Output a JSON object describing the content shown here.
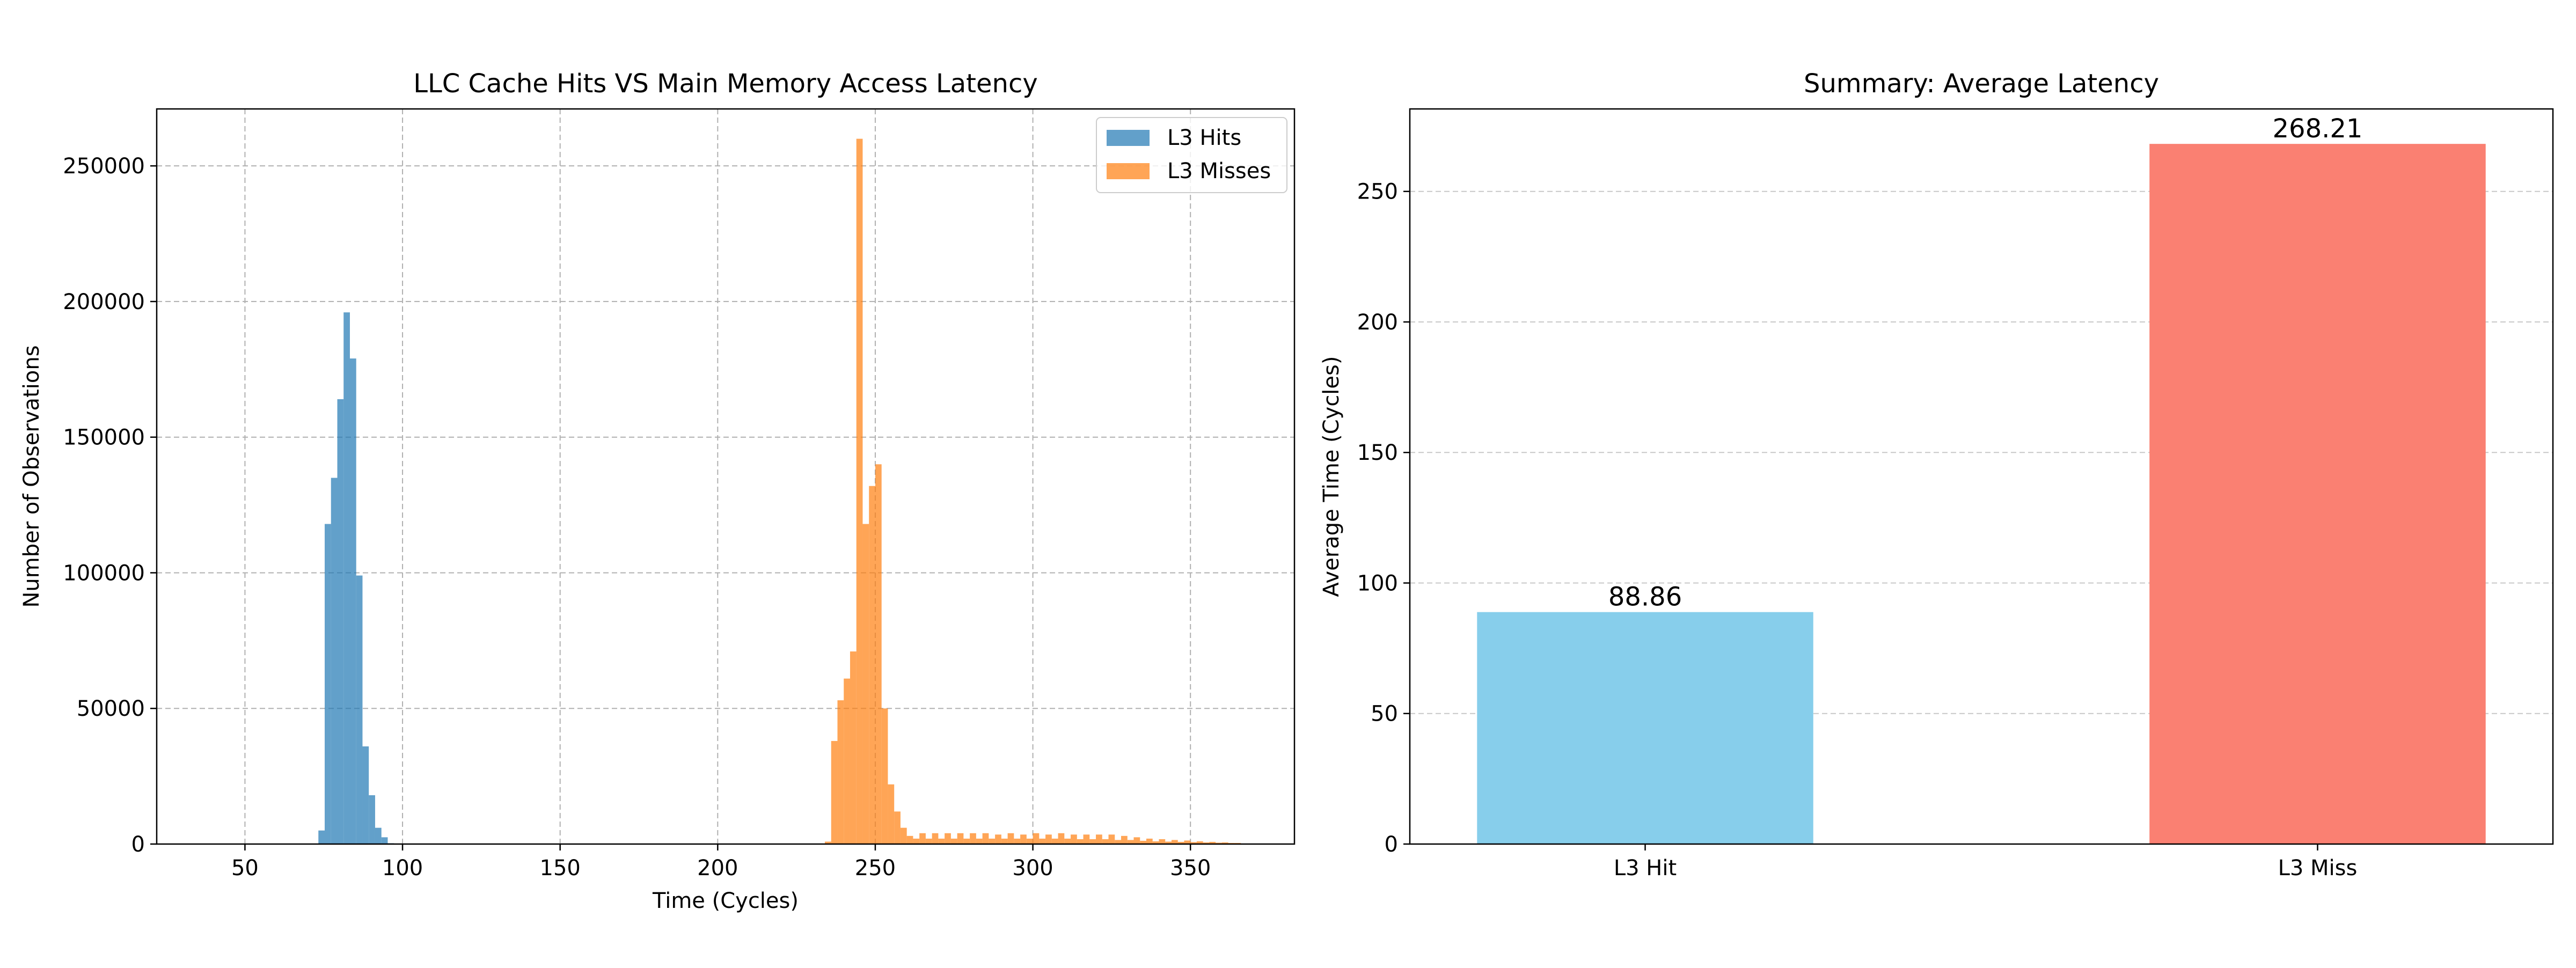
{
  "chart_data": [
    {
      "type": "histogram",
      "title": "LLC Cache Hits VS Main Memory Access Latency",
      "xlabel": "Time (Cycles)",
      "ylabel": "Number of Observations",
      "xlim": [
        22,
        383
      ],
      "ylim": [
        0,
        271000
      ],
      "x_ticks": [
        "50",
        "100",
        "150",
        "200",
        "250",
        "300",
        "350"
      ],
      "y_ticks": [
        "0",
        "50000",
        "100000",
        "150000",
        "200000",
        "250000"
      ],
      "grid": true,
      "legend_position": "top-right",
      "series": [
        {
          "name": "L3 Hits",
          "color": "#1f77b4",
          "opacity": 0.7,
          "bin_width": 2.0,
          "bins": [
            [
              73.3,
              5000
            ],
            [
              75.3,
              118000
            ],
            [
              77.3,
              135000
            ],
            [
              79.3,
              164000
            ],
            [
              81.3,
              196000
            ],
            [
              83.3,
              179000
            ],
            [
              85.3,
              99000
            ],
            [
              87.3,
              36000
            ],
            [
              89.3,
              18000
            ],
            [
              91.3,
              6000
            ],
            [
              93.3,
              2500
            ],
            [
              95.3,
              300
            ]
          ]
        },
        {
          "name": "L3 Misses",
          "color": "#ff7f0e",
          "opacity": 0.7,
          "bin_width": 2.0,
          "bins": [
            [
              234.0,
              900
            ],
            [
              236.0,
              38000
            ],
            [
              238.0,
              53000
            ],
            [
              240.0,
              61000
            ],
            [
              242.0,
              71000
            ],
            [
              244.0,
              260000
            ],
            [
              246.0,
              118000
            ],
            [
              248.0,
              132000
            ],
            [
              250.0,
              140000
            ],
            [
              252.0,
              50000
            ],
            [
              254.0,
              22000
            ],
            [
              256.0,
              12000
            ],
            [
              258.0,
              6000
            ],
            [
              260.0,
              3000
            ],
            [
              262.0,
              2000
            ],
            [
              264.0,
              4000
            ],
            [
              266.0,
              2000
            ],
            [
              268.0,
              4000
            ],
            [
              270.0,
              2000
            ],
            [
              272.0,
              4000
            ],
            [
              274.0,
              2000
            ],
            [
              276.0,
              4000
            ],
            [
              278.0,
              2000
            ],
            [
              280.0,
              4000
            ],
            [
              282.0,
              2000
            ],
            [
              284.0,
              4000
            ],
            [
              286.0,
              2000
            ],
            [
              288.0,
              3500
            ],
            [
              290.0,
              2000
            ],
            [
              292.0,
              4000
            ],
            [
              294.0,
              2000
            ],
            [
              296.0,
              3500
            ],
            [
              298.0,
              2000
            ],
            [
              300.0,
              4000
            ],
            [
              302.0,
              2000
            ],
            [
              304.0,
              3500
            ],
            [
              306.0,
              2000
            ],
            [
              308.0,
              4000
            ],
            [
              310.0,
              2000
            ],
            [
              312.0,
              3500
            ],
            [
              314.0,
              1800
            ],
            [
              316.0,
              3500
            ],
            [
              318.0,
              1800
            ],
            [
              320.0,
              3500
            ],
            [
              322.0,
              1800
            ],
            [
              324.0,
              3500
            ],
            [
              326.0,
              1500
            ],
            [
              328.0,
              3000
            ],
            [
              330.0,
              1500
            ],
            [
              332.0,
              2500
            ],
            [
              334.0,
              1200
            ],
            [
              336.0,
              2000
            ],
            [
              338.0,
              1000
            ],
            [
              340.0,
              1800
            ],
            [
              342.0,
              900
            ],
            [
              344.0,
              1500
            ],
            [
              346.0,
              800
            ],
            [
              348.0,
              1300
            ],
            [
              350.0,
              700
            ],
            [
              352.0,
              1000
            ],
            [
              354.0,
              600
            ],
            [
              356.0,
              800
            ],
            [
              358.0,
              500
            ],
            [
              360.0,
              600
            ],
            [
              362.0,
              400
            ],
            [
              364.0,
              400
            ]
          ]
        }
      ]
    },
    {
      "type": "bar",
      "title": "Summary: Average Latency",
      "xlabel": "",
      "ylabel": "Average Time (Cycles)",
      "categories": [
        "L3 Hit",
        "L3 Miss"
      ],
      "values": [
        88.86,
        268.21
      ],
      "value_labels": [
        "88.86",
        "268.21"
      ],
      "colors": [
        "#87ceeb",
        "#fa8072"
      ],
      "ylim": [
        0,
        281.6
      ],
      "y_ticks": [
        "0",
        "50",
        "100",
        "150",
        "200",
        "250"
      ],
      "grid": "y"
    }
  ]
}
